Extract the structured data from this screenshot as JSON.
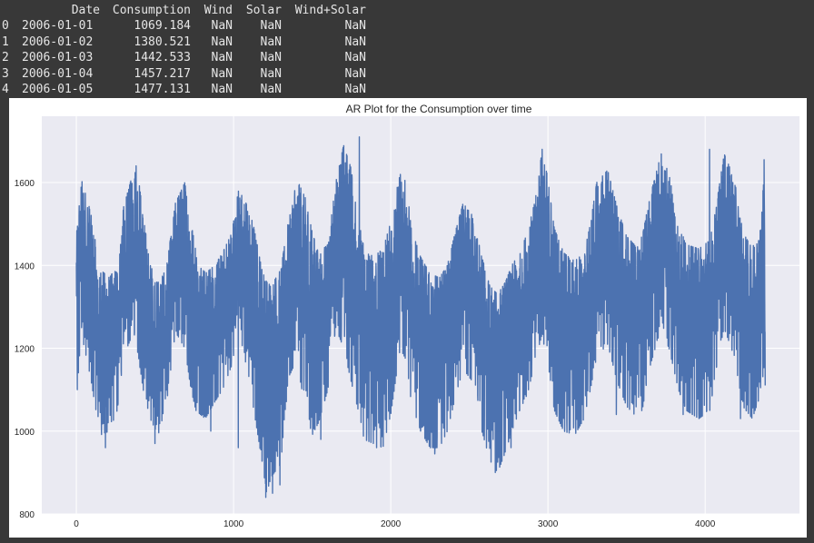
{
  "dataframe": {
    "columns": [
      "Date",
      "Consumption",
      "Wind",
      "Solar",
      "Wind+Solar"
    ],
    "rows": [
      {
        "index": "0",
        "date": "2006-01-01",
        "consumption": "1069.184",
        "wind": "NaN",
        "solar": "NaN",
        "wind_solar": "NaN"
      },
      {
        "index": "1",
        "date": "2006-01-02",
        "consumption": "1380.521",
        "wind": "NaN",
        "solar": "NaN",
        "wind_solar": "NaN"
      },
      {
        "index": "2",
        "date": "2006-01-03",
        "consumption": "1442.533",
        "wind": "NaN",
        "solar": "NaN",
        "wind_solar": "NaN"
      },
      {
        "index": "3",
        "date": "2006-01-04",
        "consumption": "1457.217",
        "wind": "NaN",
        "solar": "NaN",
        "wind_solar": "NaN"
      },
      {
        "index": "4",
        "date": "2006-01-05",
        "consumption": "1477.131",
        "wind": "NaN",
        "solar": "NaN",
        "wind_solar": "NaN"
      }
    ]
  },
  "chart_data": {
    "type": "line",
    "title": "AR Plot for the Consumption over time",
    "xlabel": "",
    "ylabel": "",
    "xlim": [
      -220,
      4600
    ],
    "ylim": [
      800,
      1760
    ],
    "xticks": [
      0,
      1000,
      2000,
      3000,
      4000
    ],
    "xtick_labels": [
      "0",
      "1000",
      "2000",
      "3000",
      "4000"
    ],
    "yticks": [
      800,
      1000,
      1200,
      1400,
      1600
    ],
    "ytick_labels": [
      "800",
      "1000",
      "1200",
      "1400",
      "1600"
    ],
    "grid": true,
    "style": "seaborn",
    "series": [
      {
        "color": "#4c72b0",
        "envelope": {
          "x": [
            0,
            30,
            90,
            150,
            210,
            260,
            300,
            365,
            395,
            425,
            470,
            520,
            575,
            630,
            690,
            730,
            760,
            820,
            880,
            930,
            990,
            1030,
            1070,
            1125,
            1180,
            1210,
            1240,
            1300,
            1350,
            1400,
            1460,
            1500,
            1540,
            1600,
            1650,
            1700,
            1760,
            1800,
            1830,
            1890,
            1950,
            2000,
            2060,
            2100,
            2130,
            2190,
            2250,
            2310,
            2360,
            2410,
            2460,
            2520,
            2580,
            2630,
            2680,
            2730,
            2770,
            2820,
            2870,
            2920,
            2960,
            2995,
            3040,
            3100,
            3170,
            3230,
            3270,
            3310,
            3380,
            3440,
            3500,
            3550,
            3600,
            3645,
            3720,
            3770,
            3830,
            3880,
            3960,
            4030,
            4070,
            4120,
            4185,
            4240,
            4300,
            4345,
            4375,
            4385
          ],
          "min": [
            1065,
            1240,
            1130,
            990,
            1000,
            1050,
            1180,
            1240,
            1180,
            1100,
            1030,
            990,
            1070,
            1240,
            1200,
            1100,
            1050,
            1030,
            1070,
            1100,
            1160,
            1250,
            1180,
            1060,
            930,
            850,
            890,
            920,
            1130,
            1170,
            1050,
            990,
            1020,
            1100,
            1250,
            1200,
            1100,
            1040,
            980,
            970,
            960,
            1040,
            1200,
            1170,
            1070,
            1000,
            960,
            960,
            1000,
            1080,
            1150,
            1120,
            1000,
            930,
            900,
            950,
            1000,
            1050,
            1090,
            1170,
            1230,
            1180,
            1050,
            1000,
            990,
            1030,
            1100,
            1180,
            1210,
            1120,
            1060,
            1040,
            1050,
            1150,
            1250,
            1200,
            1100,
            1050,
            1030,
            1050,
            1150,
            1250,
            1180,
            1060,
            1030,
            1080,
            1150,
            1110
          ],
          "max": [
            1470,
            1610,
            1530,
            1390,
            1370,
            1400,
            1540,
            1630,
            1610,
            1520,
            1400,
            1360,
            1400,
            1550,
            1600,
            1500,
            1440,
            1380,
            1400,
            1430,
            1480,
            1580,
            1560,
            1500,
            1390,
            1360,
            1350,
            1390,
            1510,
            1610,
            1560,
            1480,
            1430,
            1450,
            1600,
            1690,
            1620,
            1500,
            1440,
            1420,
            1440,
            1520,
            1620,
            1600,
            1490,
            1420,
            1380,
            1370,
            1400,
            1480,
            1550,
            1520,
            1420,
            1350,
            1330,
            1360,
            1400,
            1430,
            1480,
            1560,
            1670,
            1620,
            1490,
            1430,
            1410,
            1430,
            1500,
            1600,
            1630,
            1540,
            1470,
            1450,
            1470,
            1560,
            1670,
            1620,
            1500,
            1450,
            1440,
            1460,
            1540,
            1670,
            1610,
            1480,
            1440,
            1490,
            1610,
            1400
          ]
        },
        "spikes": [
          {
            "x": 185,
            "y": 960
          },
          {
            "x": 500,
            "y": 970
          },
          {
            "x": 855,
            "y": 1000
          },
          {
            "x": 1030,
            "y": 960
          },
          {
            "x": 1205,
            "y": 840
          },
          {
            "x": 1248,
            "y": 850
          },
          {
            "x": 1295,
            "y": 870
          },
          {
            "x": 1555,
            "y": 980
          },
          {
            "x": 1910,
            "y": 960
          },
          {
            "x": 2280,
            "y": 945
          },
          {
            "x": 2665,
            "y": 900
          },
          {
            "x": 2765,
            "y": 960
          },
          {
            "x": 3435,
            "y": 1040
          },
          {
            "x": 3860,
            "y": 1040
          },
          {
            "x": 4225,
            "y": 1030
          },
          {
            "x": 380,
            "y": 1640
          },
          {
            "x": 1800,
            "y": 1710
          },
          {
            "x": 2963,
            "y": 1680
          },
          {
            "x": 4028,
            "y": 1680
          },
          {
            "x": 4375,
            "y": 1655
          },
          {
            "x": 4382,
            "y": 1110
          }
        ],
        "points": 4383
      }
    ]
  }
}
